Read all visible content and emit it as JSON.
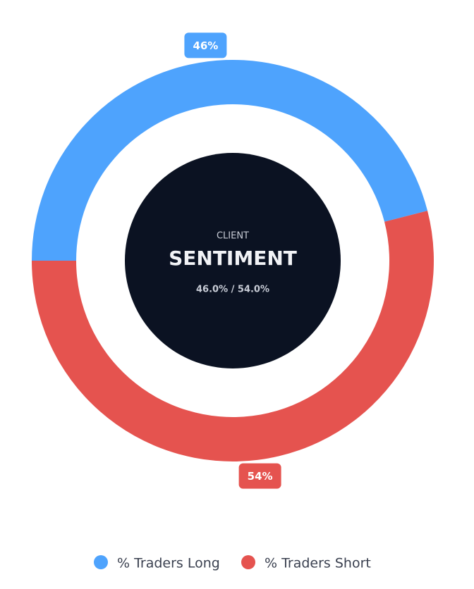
{
  "chart_data": {
    "type": "doughnut",
    "categories": [
      "% Traders Long",
      "% Traders Short"
    ],
    "values": [
      46,
      54
    ],
    "value_labels": [
      "46%",
      "54%"
    ],
    "colors": [
      "#4ea3fd",
      "#e5534f"
    ],
    "center_label": "CLIENT",
    "center_title": "SENTIMENT",
    "center_detail": "46.0% / 54.0%",
    "legend": "bottom"
  }
}
